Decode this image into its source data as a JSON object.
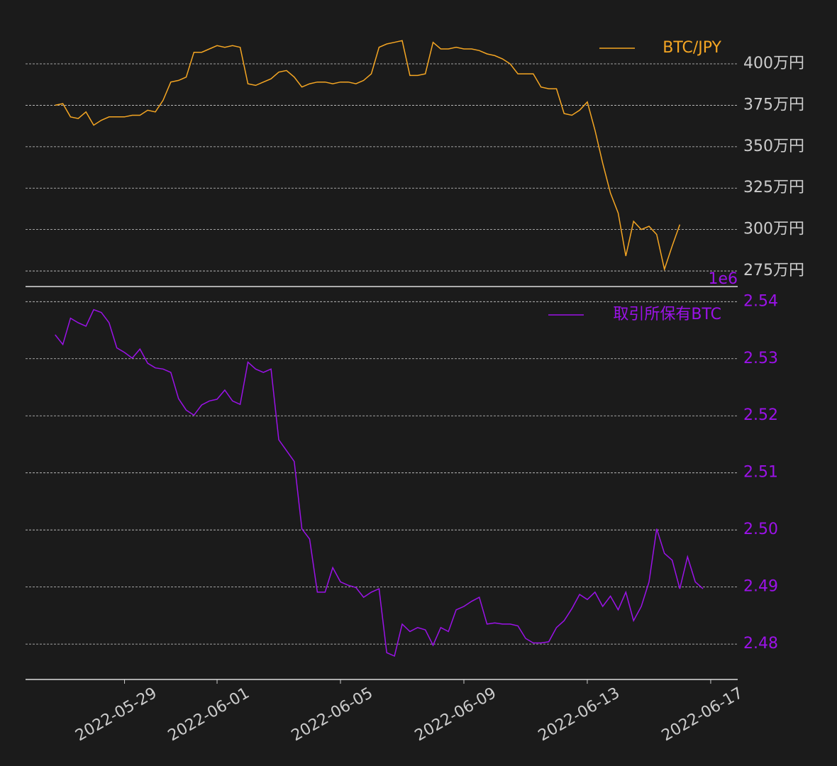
{
  "chart_data": [
    {
      "type": "line",
      "x": [
        "2022-05-26T18:00",
        "2022-05-27T00:00",
        "2022-05-27T06:00",
        "2022-05-27T12:00",
        "2022-05-27T18:00",
        "2022-05-28T00:00",
        "2022-05-28T06:00",
        "2022-05-28T12:00",
        "2022-05-28T18:00",
        "2022-05-29T00:00",
        "2022-05-29T06:00",
        "2022-05-29T12:00",
        "2022-05-29T18:00",
        "2022-05-30T00:00",
        "2022-05-30T06:00",
        "2022-05-30T12:00",
        "2022-05-30T18:00",
        "2022-05-31T00:00",
        "2022-05-31T06:00",
        "2022-05-31T12:00",
        "2022-05-31T18:00",
        "2022-06-01T00:00",
        "2022-06-01T06:00",
        "2022-06-01T12:00",
        "2022-06-01T18:00",
        "2022-06-02T00:00",
        "2022-06-02T06:00",
        "2022-06-02T12:00",
        "2022-06-02T18:00",
        "2022-06-03T00:00",
        "2022-06-03T06:00",
        "2022-06-03T12:00",
        "2022-06-03T18:00",
        "2022-06-04T00:00",
        "2022-06-04T06:00",
        "2022-06-04T12:00",
        "2022-06-04T18:00",
        "2022-06-05T00:00",
        "2022-06-05T06:00",
        "2022-06-05T12:00",
        "2022-06-05T18:00",
        "2022-06-06T00:00",
        "2022-06-06T06:00",
        "2022-06-06T12:00",
        "2022-06-06T18:00",
        "2022-06-07T00:00",
        "2022-06-07T06:00",
        "2022-06-07T12:00",
        "2022-06-07T18:00",
        "2022-06-08T00:00",
        "2022-06-08T06:00",
        "2022-06-08T12:00",
        "2022-06-08T18:00",
        "2022-06-09T00:00",
        "2022-06-09T06:00",
        "2022-06-09T12:00",
        "2022-06-09T18:00",
        "2022-06-10T00:00",
        "2022-06-10T06:00",
        "2022-06-10T12:00",
        "2022-06-10T18:00",
        "2022-06-11T00:00",
        "2022-06-11T06:00",
        "2022-06-11T12:00",
        "2022-06-11T18:00",
        "2022-06-12T00:00",
        "2022-06-12T06:00",
        "2022-06-12T12:00",
        "2022-06-12T18:00",
        "2022-06-13T00:00",
        "2022-06-13T06:00",
        "2022-06-13T12:00",
        "2022-06-13T18:00",
        "2022-06-14T00:00",
        "2022-06-14T06:00",
        "2022-06-14T12:00",
        "2022-06-14T18:00",
        "2022-06-15T00:00",
        "2022-06-15T06:00",
        "2022-06-15T12:00",
        "2022-06-15T18:00",
        "2022-06-16T00:00",
        "2022-06-16T06:00",
        "2022-06-16T12:00",
        "2022-06-16T18:00"
      ],
      "series": [
        {
          "name": "BTC/JPY",
          "color": "#f5a623",
          "values": [
            3750000,
            3760000,
            3680000,
            3670000,
            3710000,
            3630000,
            3660000,
            3680000,
            3680000,
            3680000,
            3690000,
            3690000,
            3720000,
            3710000,
            3780000,
            3890000,
            3900000,
            3920000,
            4070000,
            4070000,
            4090000,
            4110000,
            4100000,
            4110000,
            4100000,
            3880000,
            3870000,
            3890000,
            3910000,
            3950000,
            3960000,
            3920000,
            3860000,
            3880000,
            3890000,
            3890000,
            3880000,
            3890000,
            3890000,
            3880000,
            3900000,
            3940000,
            4100000,
            4120000,
            4130000,
            4140000,
            3930000,
            3930000,
            3940000,
            4130000,
            4090000,
            4090000,
            4100000,
            4090000,
            4090000,
            4080000,
            4060000,
            4050000,
            4030000,
            4000000,
            3940000,
            3940000,
            3940000,
            3860000,
            3850000,
            3850000,
            3700000,
            3690000,
            3720000,
            3770000,
            3600000,
            3400000,
            3220000,
            3100000,
            2840000,
            3050000,
            3000000,
            3020000,
            2970000,
            2760000,
            2900000,
            3030000,
            null,
            null,
            null
          ]
        }
      ],
      "xlim": [
        "2022-05-25T19:00",
        "2022-06-17T21:00"
      ],
      "ylim": [
        2656000,
        4257000
      ],
      "yticks": [
        {
          "value": 2750000,
          "label": "275万円"
        },
        {
          "value": 3000000,
          "label": "300万円"
        },
        {
          "value": 3250000,
          "label": "325万円"
        },
        {
          "value": 3500000,
          "label": "350万円"
        },
        {
          "value": 3750000,
          "label": "375万円"
        },
        {
          "value": 4000000,
          "label": "400万円"
        }
      ],
      "tick_label_color": "#cccccc",
      "grid": true,
      "legend": "upper right"
    },
    {
      "type": "line",
      "x": [
        "2022-05-26T18:00",
        "2022-05-27T00:00",
        "2022-05-27T06:00",
        "2022-05-27T12:00",
        "2022-05-27T18:00",
        "2022-05-28T00:00",
        "2022-05-28T06:00",
        "2022-05-28T12:00",
        "2022-05-28T18:00",
        "2022-05-29T00:00",
        "2022-05-29T06:00",
        "2022-05-29T12:00",
        "2022-05-29T18:00",
        "2022-05-30T00:00",
        "2022-05-30T06:00",
        "2022-05-30T12:00",
        "2022-05-30T18:00",
        "2022-05-31T00:00",
        "2022-05-31T06:00",
        "2022-05-31T12:00",
        "2022-05-31T18:00",
        "2022-06-01T00:00",
        "2022-06-01T06:00",
        "2022-06-01T12:00",
        "2022-06-01T18:00",
        "2022-06-02T00:00",
        "2022-06-02T06:00",
        "2022-06-02T12:00",
        "2022-06-02T18:00",
        "2022-06-03T00:00",
        "2022-06-03T06:00",
        "2022-06-03T12:00",
        "2022-06-03T18:00",
        "2022-06-04T00:00",
        "2022-06-04T06:00",
        "2022-06-04T12:00",
        "2022-06-04T18:00",
        "2022-06-05T00:00",
        "2022-06-05T06:00",
        "2022-06-05T12:00",
        "2022-06-05T18:00",
        "2022-06-06T00:00",
        "2022-06-06T06:00",
        "2022-06-06T12:00",
        "2022-06-06T18:00",
        "2022-06-07T00:00",
        "2022-06-07T06:00",
        "2022-06-07T12:00",
        "2022-06-07T18:00",
        "2022-06-08T00:00",
        "2022-06-08T06:00",
        "2022-06-08T12:00",
        "2022-06-08T18:00",
        "2022-06-09T00:00",
        "2022-06-09T06:00",
        "2022-06-09T12:00",
        "2022-06-09T18:00",
        "2022-06-10T00:00",
        "2022-06-10T06:00",
        "2022-06-10T12:00",
        "2022-06-10T18:00",
        "2022-06-11T00:00",
        "2022-06-11T06:00",
        "2022-06-11T12:00",
        "2022-06-11T18:00",
        "2022-06-12T00:00",
        "2022-06-12T06:00",
        "2022-06-12T12:00",
        "2022-06-12T18:00",
        "2022-06-13T00:00",
        "2022-06-13T06:00",
        "2022-06-13T12:00",
        "2022-06-13T18:00",
        "2022-06-14T00:00",
        "2022-06-14T06:00",
        "2022-06-14T12:00",
        "2022-06-14T18:00",
        "2022-06-15T00:00",
        "2022-06-15T06:00",
        "2022-06-15T12:00",
        "2022-06-15T18:00",
        "2022-06-16T00:00",
        "2022-06-16T06:00",
        "2022-06-16T12:00",
        "2022-06-16T18:00"
      ],
      "series": [
        {
          "name": "取引所保有BTC",
          "color": "#9b12e8",
          "values": [
            2.5342,
            2.5325,
            2.5371,
            2.5363,
            2.5357,
            2.5386,
            2.5381,
            2.5363,
            2.5319,
            2.5311,
            2.5301,
            2.5317,
            2.5292,
            2.5284,
            2.5282,
            2.5276,
            2.523,
            2.521,
            2.5201,
            2.5219,
            2.5226,
            2.5229,
            2.5245,
            2.5226,
            2.522,
            2.5294,
            2.5282,
            2.5276,
            2.5282,
            2.5158,
            2.5139,
            2.512,
            2.5002,
            2.4984,
            2.4891,
            2.4891,
            2.4934,
            2.4909,
            2.4903,
            2.4899,
            2.4882,
            2.4891,
            2.4897,
            2.4785,
            2.4779,
            2.4835,
            2.4822,
            2.4829,
            2.4825,
            2.4798,
            2.4829,
            2.4822,
            2.486,
            2.4866,
            2.4875,
            2.4882,
            2.4835,
            2.4837,
            2.4835,
            2.4835,
            2.4832,
            2.481,
            2.4802,
            2.4802,
            2.4804,
            2.4829,
            2.4841,
            2.4862,
            2.4887,
            2.4878,
            2.4891,
            2.4866,
            2.4884,
            2.486,
            2.4891,
            2.4841,
            2.4866,
            2.4909,
            2.5002,
            2.4959,
            2.4947,
            2.4897,
            2.4953,
            2.4909,
            2.4897
          ]
        }
      ],
      "xlim": [
        "2022-05-25T19:00",
        "2022-06-17T21:00"
      ],
      "xticks": [
        "2022-05-29",
        "2022-06-01",
        "2022-06-05",
        "2022-06-09",
        "2022-06-13",
        "2022-06-17"
      ],
      "ylim": [
        2.4738,
        2.5424
      ],
      "yticks": [
        2.48,
        2.49,
        {
          "value": 2.5,
          "label": "2.50"
        },
        2.51,
        2.52,
        2.53,
        2.54
      ],
      "offset_label": "1e6",
      "tick_label_color": "#9b12e8",
      "grid": true,
      "legend": "upper right"
    }
  ]
}
